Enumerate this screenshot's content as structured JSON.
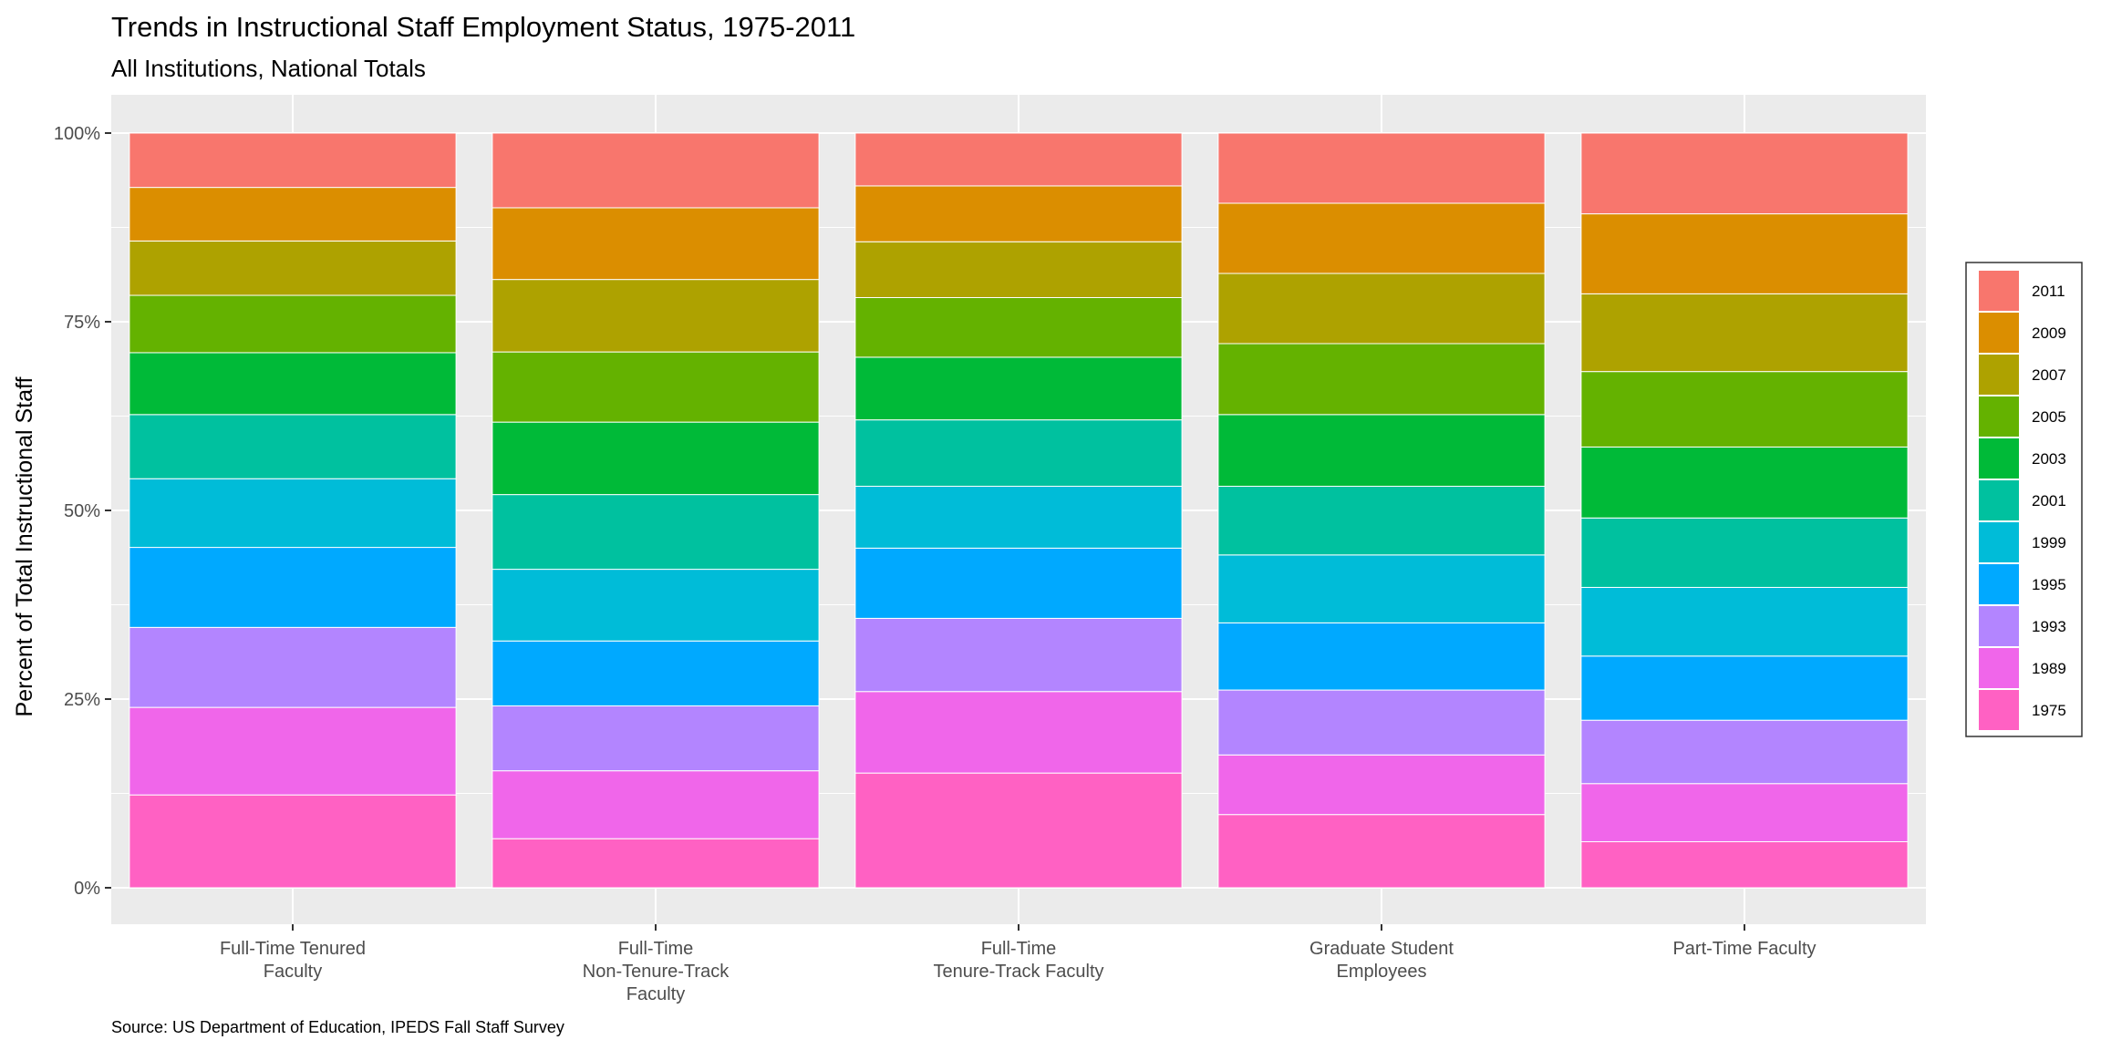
{
  "chart_data": {
    "type": "bar",
    "stacked": "percent",
    "title": "Trends in Instructional Staff Employment Status, 1975-2011",
    "subtitle": "All Institutions, National Totals",
    "ylabel": "Percent of Total Instructional Staff",
    "xlabel": "",
    "caption": "Source: US Department of Education, IPEDS Fall Staff Survey",
    "ylim": [
      0,
      100
    ],
    "yticks": [
      "0%",
      "25%",
      "50%",
      "75%",
      "100%"
    ],
    "grid": true,
    "legend_position": "right",
    "categories": [
      [
        "Full-Time Tenured",
        "Faculty"
      ],
      [
        "Full-Time",
        "Non-Tenure-Track",
        "Faculty"
      ],
      [
        "Full-Time",
        "Tenure-Track Faculty"
      ],
      [
        "Graduate Student",
        "Employees"
      ],
      [
        "Part-Time Faculty"
      ]
    ],
    "series": [
      {
        "name": "1975",
        "color": "#FF61C3",
        "values": [
          12.3,
          6.5,
          15.2,
          9.7,
          6.1
        ]
      },
      {
        "name": "1989",
        "color": "#F066EA",
        "values": [
          11.6,
          9.0,
          10.8,
          7.9,
          7.7
        ]
      },
      {
        "name": "1993",
        "color": "#B385FF",
        "values": [
          10.6,
          8.6,
          9.7,
          8.6,
          8.4
        ]
      },
      {
        "name": "1995",
        "color": "#00A9FF",
        "values": [
          10.6,
          8.6,
          9.3,
          8.9,
          8.5
        ]
      },
      {
        "name": "1999",
        "color": "#00BCD8",
        "values": [
          9.1,
          9.5,
          8.2,
          9.0,
          9.1
        ]
      },
      {
        "name": "2001",
        "color": "#00C19F",
        "values": [
          8.5,
          9.9,
          8.8,
          9.1,
          9.2
        ]
      },
      {
        "name": "2003",
        "color": "#00BA38",
        "values": [
          8.2,
          9.6,
          8.3,
          9.5,
          9.4
        ]
      },
      {
        "name": "2005",
        "color": "#64B200",
        "values": [
          7.6,
          9.3,
          7.9,
          9.4,
          10.0
        ]
      },
      {
        "name": "2007",
        "color": "#AEA200",
        "values": [
          7.2,
          9.6,
          7.4,
          9.3,
          10.3
        ]
      },
      {
        "name": "2009",
        "color": "#DB8E00",
        "values": [
          7.1,
          9.5,
          7.4,
          9.3,
          10.6
        ]
      },
      {
        "name": "2011",
        "color": "#F8766D",
        "values": [
          7.2,
          9.9,
          7.0,
          9.3,
          10.7
        ]
      }
    ]
  }
}
